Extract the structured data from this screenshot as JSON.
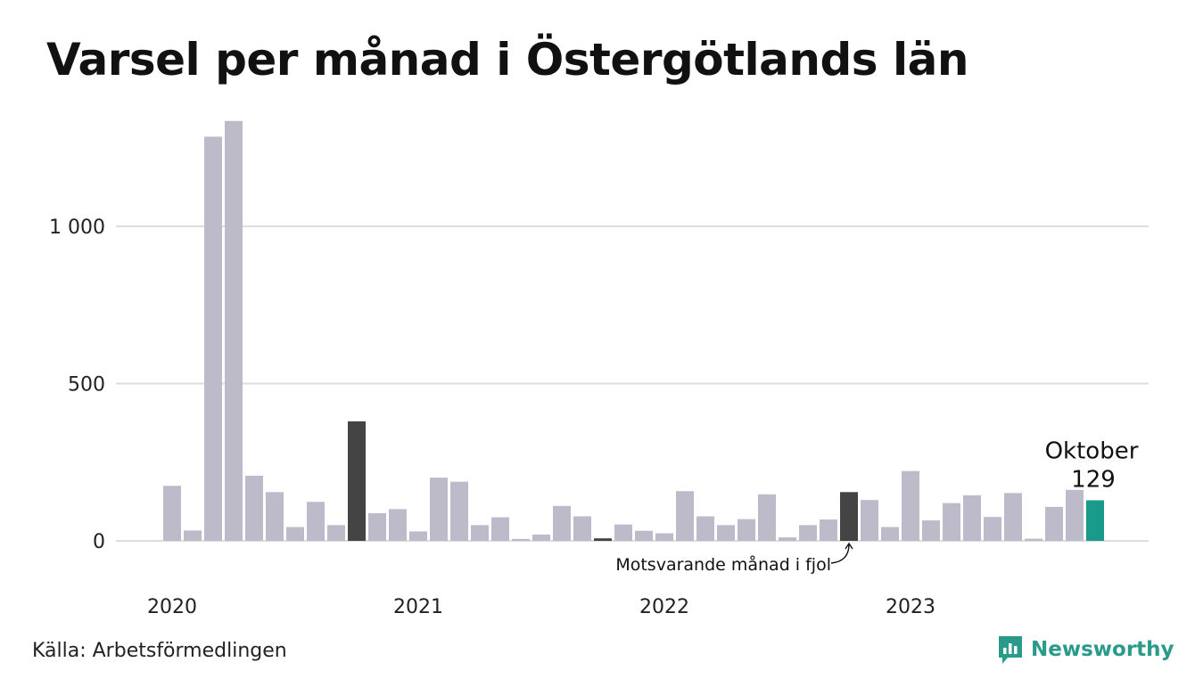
{
  "title": "Varsel per månad i Östergötlands län",
  "source": "Källa: Arbetsförmedlingen",
  "brand": "Newsworthy",
  "colors": {
    "bar": "#bdbaca",
    "comparison": "#444444",
    "current": "#1a9a8a",
    "grid": "#dddddd",
    "brand": "#2a9a8a"
  },
  "chart_data": {
    "type": "bar",
    "title": "Varsel per månad i Östergötlands län",
    "xlabel": "",
    "ylabel": "",
    "ylim": [
      0,
      1350
    ],
    "yticks": [
      0,
      500,
      1000
    ],
    "ytick_labels": [
      "0",
      "500",
      "1 000"
    ],
    "xtick_labels": [
      "2020",
      "2021",
      "2022",
      "2023"
    ],
    "xtick_month_index": [
      0,
      12,
      24,
      36
    ],
    "grid": true,
    "values": [
      175,
      33,
      1285,
      1335,
      207,
      155,
      44,
      124,
      50,
      380,
      88,
      101,
      30,
      201,
      188,
      50,
      75,
      6,
      20,
      111,
      78,
      8,
      52,
      32,
      24,
      158,
      78,
      50,
      69,
      148,
      11,
      50,
      68,
      155,
      130,
      44,
      222,
      65,
      120,
      145,
      76,
      152,
      7,
      108,
      162,
      129
    ],
    "highlight": {
      "comparison_index": 9,
      "comparison_index_2": 21,
      "comparison_index_3": 33,
      "current_index": 45
    },
    "annotations": {
      "comparison_label": "Motsvarande månad i fjol",
      "current_month": "Oktober",
      "current_value": "129"
    }
  }
}
